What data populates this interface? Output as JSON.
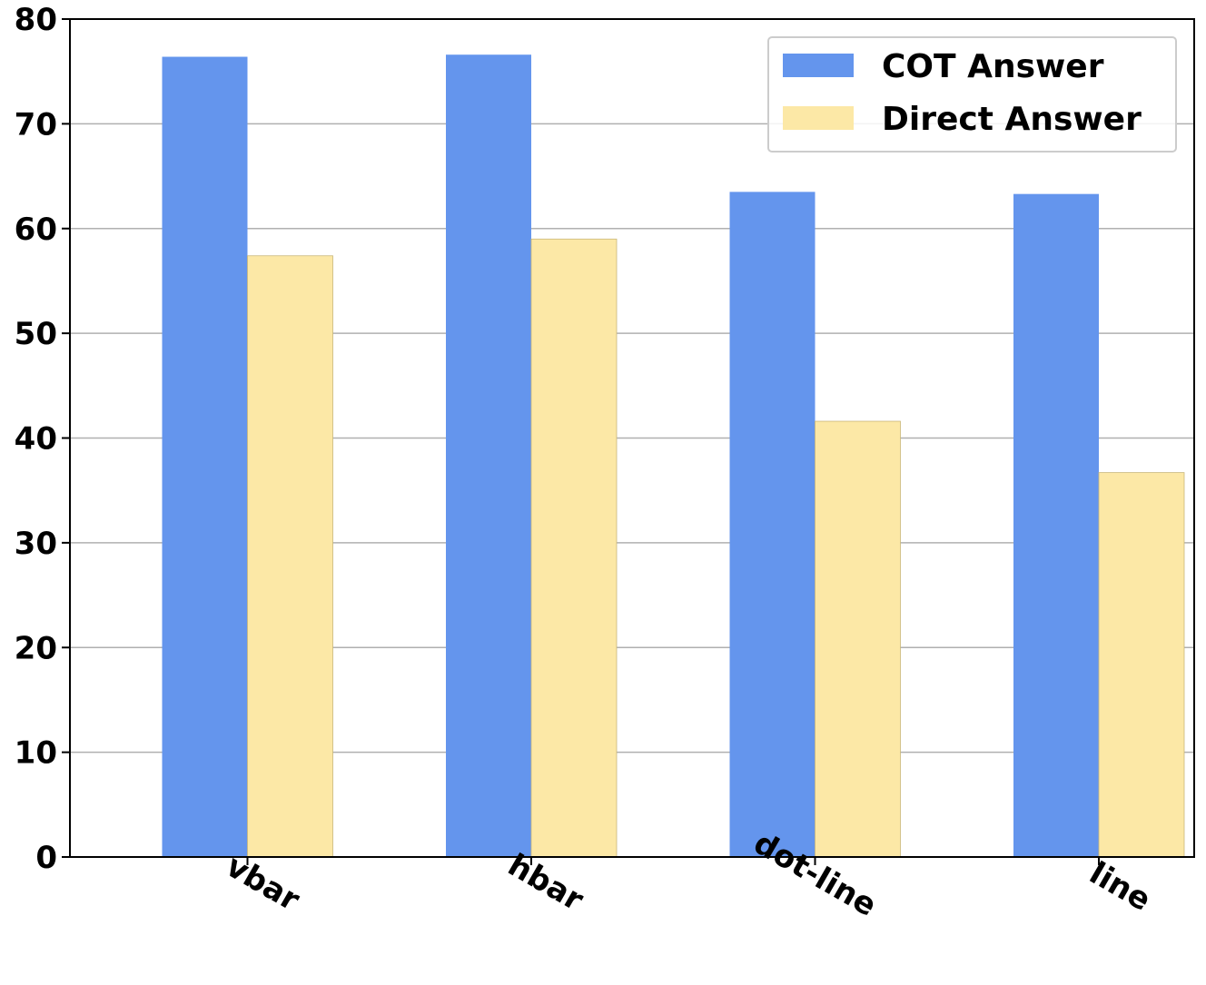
{
  "chart_data": {
    "type": "bar",
    "title": "",
    "xlabel": "",
    "ylabel": "",
    "categories": [
      "vbar",
      "hbar",
      "dot-line",
      "line"
    ],
    "series": [
      {
        "name": "COT Answer",
        "values": [
          76.4,
          76.6,
          63.5,
          63.3
        ],
        "color": "#6495ED"
      },
      {
        "name": "Direct Answer",
        "values": [
          57.4,
          59.0,
          41.6,
          36.7
        ],
        "color": "#FCE8A6"
      }
    ],
    "ylim": [
      0,
      80
    ],
    "yticks": [
      0,
      10,
      20,
      30,
      40,
      50,
      60,
      70,
      80
    ],
    "grid": "horizontal",
    "legend_position": "top-right"
  }
}
